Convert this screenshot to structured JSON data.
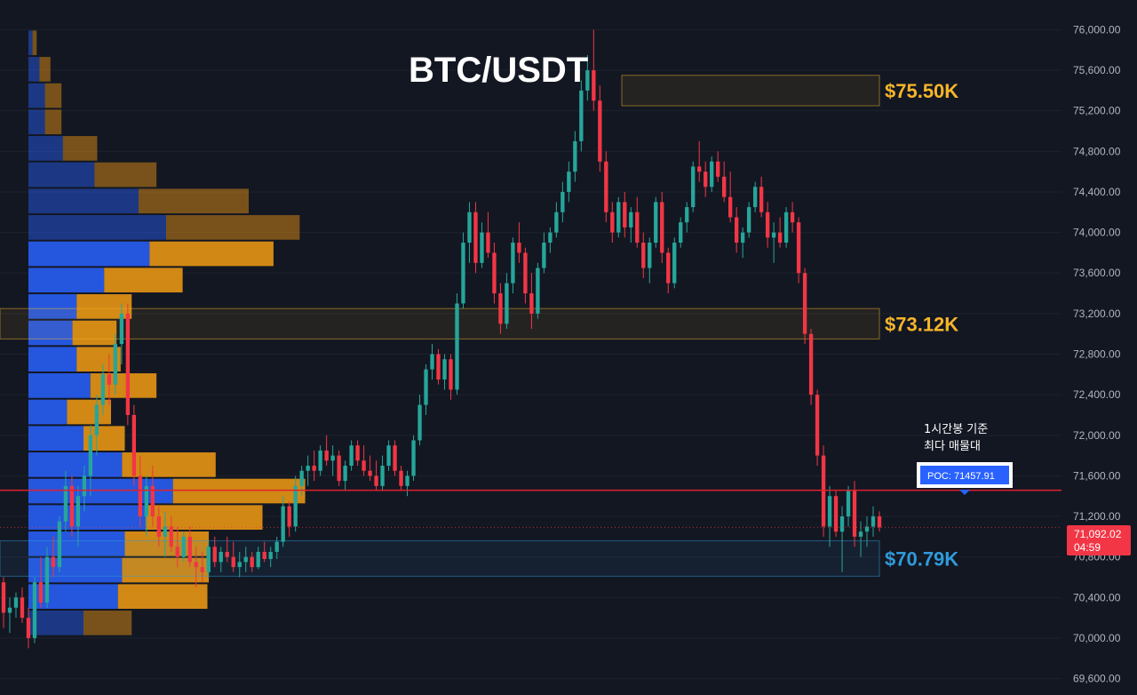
{
  "colors": {
    "background": "#131722",
    "up": "#26a69a",
    "down": "#f23645",
    "grid": "#1e222d",
    "profile_blue": "#2962ff",
    "profile_orange": "#f39c12",
    "poc_line": "#e0202e",
    "zone_yellow": "#f5b52a",
    "zone_blue": "#2f9bdc",
    "price_tag": "#f23645"
  },
  "chart_data": {
    "type": "candlestick",
    "title": "BTC/USDT",
    "ylim": [
      69500,
      76100
    ],
    "y_ticks": [
      "76,000.00",
      "75,600.00",
      "75,200.00",
      "74,800.00",
      "74,400.00",
      "74,000.00",
      "73,600.00",
      "73,200.00",
      "72,800.00",
      "72,400.00",
      "72,000.00",
      "71,600.00",
      "71,200.00",
      "70,800.00",
      "70,400.00",
      "70,000.00",
      "69,600.00"
    ],
    "y_tick_values": [
      76000,
      75600,
      75200,
      74800,
      74400,
      74000,
      73600,
      73200,
      72800,
      72400,
      72000,
      71600,
      71200,
      70800,
      70400,
      70000,
      69600
    ],
    "zones": [
      {
        "label": "$75.50K",
        "low": 75250,
        "high": 75550,
        "color": "yellow"
      },
      {
        "label": "$73.12K",
        "low": 72950,
        "high": 73250,
        "color": "yellow"
      },
      {
        "label": "$70.79K",
        "low": 70610,
        "high": 70960,
        "color": "blue"
      }
    ],
    "poc": {
      "label": "POC: 71457.91",
      "value": 71457.91
    },
    "annotation": [
      "1시간봉 기준",
      "최다 매물대"
    ],
    "last_price": {
      "price": "71,092.02",
      "countdown": "04:59",
      "value": 71092.02
    },
    "volume_profile": {
      "bin_tops": [
        76000,
        75740,
        75480,
        75220,
        74960,
        74700,
        74440,
        74180,
        73920,
        73660,
        73400,
        73140,
        72880,
        72620,
        72360,
        72100,
        71840,
        71580,
        71320,
        71060,
        70800,
        70540,
        70280
      ],
      "buy": [
        3,
        8,
        12,
        12,
        25,
        48,
        80,
        100,
        88,
        55,
        35,
        32,
        35,
        45,
        28,
        40,
        68,
        105,
        85,
        70,
        68,
        65,
        40
      ],
      "sell": [
        3,
        8,
        12,
        12,
        25,
        45,
        80,
        97,
        90,
        57,
        40,
        32,
        32,
        48,
        32,
        30,
        68,
        96,
        85,
        61,
        63,
        65,
        35
      ]
    },
    "candles": [
      [
        70550,
        70600,
        70100,
        70250
      ],
      [
        70250,
        70400,
        70050,
        70300
      ],
      [
        70300,
        70450,
        70200,
        70400
      ],
      [
        70400,
        70500,
        70150,
        70200
      ],
      [
        70200,
        70300,
        69900,
        70000
      ],
      [
        70000,
        70600,
        69950,
        70550
      ],
      [
        70550,
        70800,
        70300,
        70350
      ],
      [
        70350,
        70900,
        70300,
        70800
      ],
      [
        70800,
        71000,
        70600,
        70700
      ],
      [
        70700,
        71200,
        70650,
        71150
      ],
      [
        71150,
        71650,
        71050,
        71500
      ],
      [
        71500,
        71600,
        71000,
        71100
      ],
      [
        71100,
        71500,
        70900,
        71400
      ],
      [
        71400,
        71700,
        71250,
        71600
      ],
      [
        71600,
        72100,
        71400,
        72000
      ],
      [
        72000,
        72400,
        71800,
        72300
      ],
      [
        72300,
        72700,
        72200,
        72600
      ],
      [
        72600,
        72800,
        72300,
        72500
      ],
      [
        72500,
        73000,
        72400,
        72900
      ],
      [
        72900,
        73300,
        72700,
        73200
      ],
      [
        73200,
        73300,
        72100,
        72200
      ],
      [
        72200,
        72300,
        71500,
        71600
      ],
      [
        71600,
        71800,
        71100,
        71200
      ],
      [
        71200,
        71600,
        71000,
        71500
      ],
      [
        71500,
        71700,
        71100,
        71200
      ],
      [
        71200,
        71300,
        70900,
        71000
      ],
      [
        71000,
        71250,
        70800,
        71100
      ],
      [
        71100,
        71200,
        70850,
        70900
      ],
      [
        70900,
        71100,
        70700,
        70800
      ],
      [
        70800,
        71050,
        70750,
        71000
      ],
      [
        71000,
        71100,
        70700,
        70750
      ],
      [
        70750,
        70900,
        70500,
        70700
      ],
      [
        70700,
        70850,
        70550,
        70650
      ],
      [
        70650,
        70950,
        70600,
        70900
      ],
      [
        70900,
        71000,
        70700,
        70750
      ],
      [
        70750,
        70900,
        70650,
        70850
      ],
      [
        70850,
        71000,
        70750,
        70800
      ],
      [
        70800,
        70950,
        70650,
        70700
      ],
      [
        70700,
        70850,
        70600,
        70750
      ],
      [
        70750,
        70900,
        70650,
        70800
      ],
      [
        70800,
        70850,
        70650,
        70700
      ],
      [
        70700,
        70900,
        70680,
        70850
      ],
      [
        70850,
        70950,
        70750,
        70780
      ],
      [
        70780,
        70900,
        70700,
        70850
      ],
      [
        70850,
        71000,
        70780,
        70950
      ],
      [
        70950,
        71400,
        70900,
        71300
      ],
      [
        71300,
        71350,
        71000,
        71100
      ],
      [
        71100,
        71600,
        71050,
        71500
      ],
      [
        71500,
        71700,
        71400,
        71650
      ],
      [
        71650,
        71800,
        71500,
        71700
      ],
      [
        71700,
        71850,
        71550,
        71650
      ],
      [
        71650,
        71900,
        71600,
        71850
      ],
      [
        71850,
        72000,
        71700,
        71750
      ],
      [
        71750,
        71900,
        71600,
        71800
      ],
      [
        71800,
        71850,
        71500,
        71550
      ],
      [
        71550,
        71750,
        71450,
        71700
      ],
      [
        71700,
        71950,
        71650,
        71900
      ],
      [
        71900,
        71950,
        71700,
        71750
      ],
      [
        71750,
        71900,
        71600,
        71650
      ],
      [
        71650,
        71800,
        71550,
        71600
      ],
      [
        71600,
        71750,
        71450,
        71500
      ],
      [
        71500,
        71800,
        71450,
        71700
      ],
      [
        71700,
        71950,
        71650,
        71900
      ],
      [
        71900,
        71950,
        71600,
        71650
      ],
      [
        71650,
        71700,
        71450,
        71500
      ],
      [
        71500,
        71650,
        71400,
        71600
      ],
      [
        71600,
        72000,
        71550,
        71950
      ],
      [
        71950,
        72400,
        71900,
        72300
      ],
      [
        72300,
        72700,
        72200,
        72650
      ],
      [
        72650,
        72900,
        72550,
        72800
      ],
      [
        72800,
        72850,
        72500,
        72550
      ],
      [
        72550,
        72800,
        72450,
        72750
      ],
      [
        72750,
        72800,
        72350,
        72450
      ],
      [
        72450,
        73400,
        72400,
        73300
      ],
      [
        73300,
        74000,
        73250,
        73900
      ],
      [
        73900,
        74300,
        73700,
        74200
      ],
      [
        74200,
        74300,
        73600,
        73700
      ],
      [
        73700,
        74100,
        73650,
        74000
      ],
      [
        74000,
        74200,
        73750,
        73800
      ],
      [
        73800,
        73900,
        73300,
        73400
      ],
      [
        73400,
        73500,
        73000,
        73100
      ],
      [
        73100,
        73600,
        73050,
        73500
      ],
      [
        73500,
        73950,
        73400,
        73900
      ],
      [
        73900,
        74100,
        73700,
        73800
      ],
      [
        73800,
        73850,
        73300,
        73400
      ],
      [
        73400,
        73600,
        73050,
        73200
      ],
      [
        73200,
        73700,
        73150,
        73650
      ],
      [
        73650,
        74000,
        73600,
        73900
      ],
      [
        73900,
        74050,
        73800,
        74000
      ],
      [
        74000,
        74300,
        73950,
        74200
      ],
      [
        74200,
        74500,
        74100,
        74400
      ],
      [
        74400,
        74700,
        74300,
        74600
      ],
      [
        74600,
        75000,
        74500,
        74900
      ],
      [
        74900,
        75500,
        74800,
        75400
      ],
      [
        75400,
        75750,
        75300,
        75600
      ],
      [
        75600,
        76000,
        75200,
        75300
      ],
      [
        75300,
        75450,
        74600,
        74700
      ],
      [
        74700,
        74800,
        74100,
        74200
      ],
      [
        74200,
        74300,
        73900,
        74000
      ],
      [
        74000,
        74350,
        73950,
        74300
      ],
      [
        74300,
        74400,
        73950,
        74050
      ],
      [
        74050,
        74250,
        73900,
        74200
      ],
      [
        74200,
        74350,
        73850,
        73900
      ],
      [
        73900,
        74000,
        73550,
        73650
      ],
      [
        73650,
        73950,
        73500,
        73900
      ],
      [
        73900,
        74350,
        73850,
        74300
      ],
      [
        74300,
        74400,
        73700,
        73800
      ],
      [
        73800,
        73850,
        73400,
        73500
      ],
      [
        73500,
        73950,
        73450,
        73900
      ],
      [
        73900,
        74150,
        73850,
        74100
      ],
      [
        74100,
        74300,
        74000,
        74250
      ],
      [
        74250,
        74700,
        74200,
        74650
      ],
      [
        74650,
        74900,
        74500,
        74600
      ],
      [
        74600,
        74700,
        74350,
        74450
      ],
      [
        74450,
        74750,
        74400,
        74700
      ],
      [
        74700,
        74800,
        74500,
        74550
      ],
      [
        74550,
        74700,
        74300,
        74350
      ],
      [
        74350,
        74600,
        74100,
        74150
      ],
      [
        74150,
        74250,
        73800,
        73900
      ],
      [
        73900,
        74050,
        73750,
        74000
      ],
      [
        74000,
        74300,
        73950,
        74250
      ],
      [
        74250,
        74500,
        74200,
        74450
      ],
      [
        74450,
        74550,
        74150,
        74200
      ],
      [
        74200,
        74300,
        73850,
        73950
      ],
      [
        73950,
        74100,
        73700,
        74000
      ],
      [
        74000,
        74150,
        73850,
        73900
      ],
      [
        73900,
        74250,
        73850,
        74200
      ],
      [
        74200,
        74300,
        74000,
        74100
      ],
      [
        74100,
        74150,
        73500,
        73600
      ],
      [
        73600,
        73650,
        72900,
        73000
      ],
      [
        73000,
        73050,
        72300,
        72400
      ],
      [
        72400,
        72450,
        71700,
        71800
      ],
      [
        71800,
        71900,
        71000,
        71100
      ],
      [
        71100,
        71500,
        70900,
        71400
      ],
      [
        71400,
        71450,
        71000,
        71050
      ],
      [
        71050,
        71300,
        70650,
        71200
      ],
      [
        71200,
        71500,
        71100,
        71450
      ],
      [
        71450,
        71550,
        70900,
        71000
      ],
      [
        71000,
        71150,
        70800,
        71050
      ],
      [
        71050,
        71200,
        70900,
        71100
      ],
      [
        71100,
        71300,
        71000,
        71200
      ],
      [
        71200,
        71250,
        71050,
        71092
      ]
    ]
  }
}
